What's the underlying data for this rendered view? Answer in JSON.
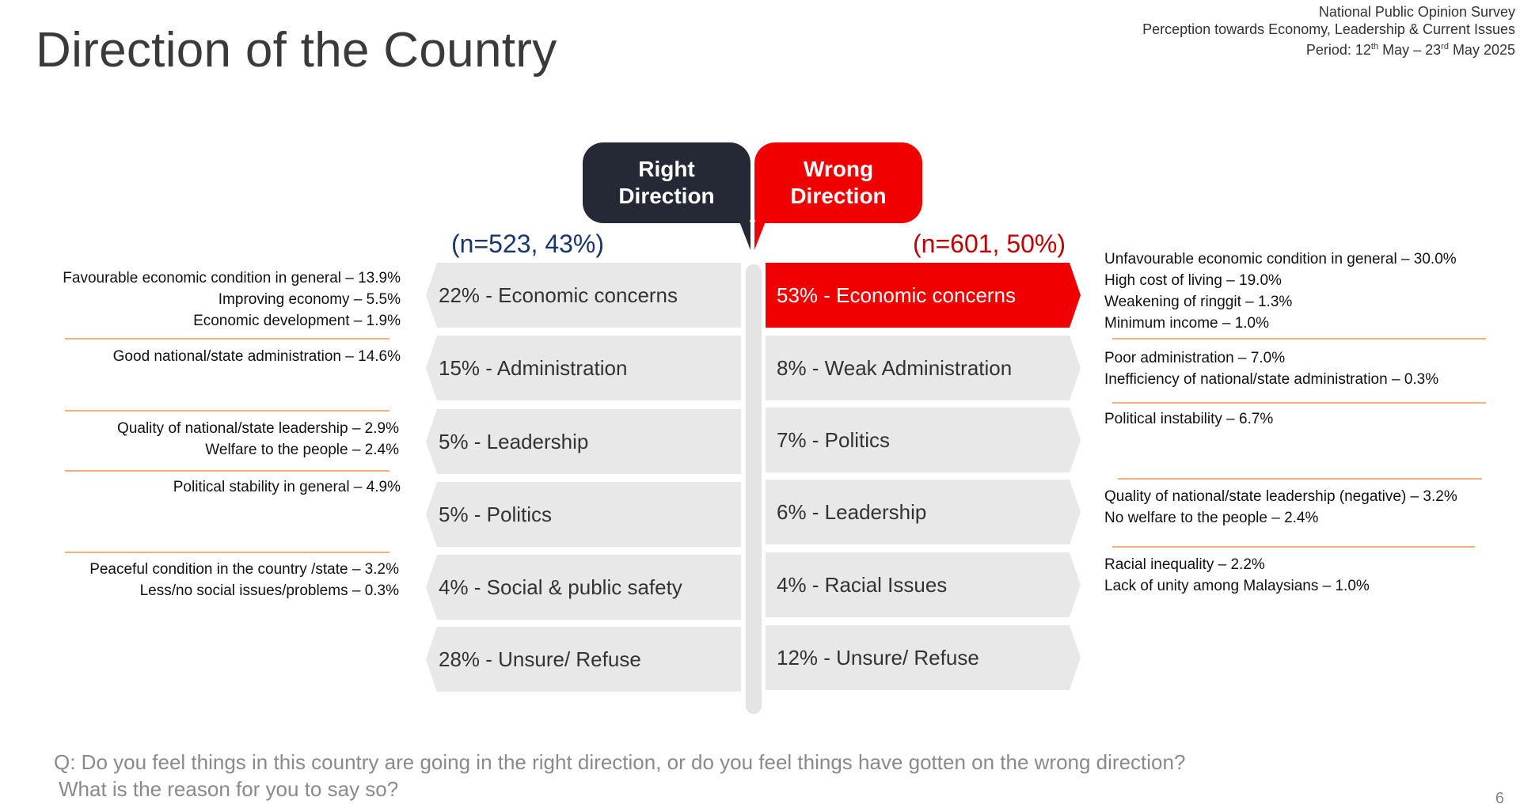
{
  "page": {
    "title": "Direction of the Country",
    "survey": {
      "name": "National Public Opinion Survey",
      "subtitle": "Perception towards Economy, Leadership & Current Issues",
      "period_prefix": "Period: 12",
      "period_sup1": "th",
      "period_mid": " May – 23",
      "period_sup2": "rd",
      "period_suffix": " May 2025"
    },
    "page_number": "6"
  },
  "right_direction": {
    "heading_line1": "Right",
    "heading_line2": "Direction",
    "n_label": "(n=523, 43%)",
    "categories": [
      "22% - Economic concerns",
      "15% - Administration",
      "5% - Leadership",
      "5% - Politics",
      "4% - Social & public safety",
      "28% - Unsure/ Refuse"
    ],
    "reasons": [
      "Favourable economic condition in general – 13.9%",
      "Improving economy – 5.5%",
      "Economic development – 1.9%",
      "Good national/state administration – 14.6%",
      "Quality of national/state leadership – 2.9%",
      "Welfare to the people – 2.4%",
      "Political stability in general – 4.9%",
      "Peaceful condition in the country /state – 3.2%",
      "Less/no social issues/problems – 0.3%"
    ]
  },
  "wrong_direction": {
    "heading_line1": "Wrong",
    "heading_line2": "Direction",
    "n_label": "(n=601, 50%)",
    "categories": [
      "53% - Economic concerns",
      "8% - Weak Administration",
      "7% - Politics",
      "6% - Leadership",
      "4% - Racial Issues",
      "12% - Unsure/ Refuse"
    ],
    "reasons": [
      "Unfavourable economic condition in general – 30.0%",
      "High cost of living – 19.0%",
      "Weakening of ringgit – 1.3%",
      "Minimum income – 1.0%",
      "Poor administration – 7.0%",
      "Inefficiency of national/state administration – 0.3%",
      "Political instability – 6.7%",
      "Quality of national/state leadership (negative) – 3.2%",
      "No welfare to the people – 2.4%",
      "Racial inequality – 2.2%",
      "Lack of unity among Malaysians – 1.0%"
    ]
  },
  "question": {
    "line1": "Q: Do you feel things in this country are going in the right direction, or do you feel things have gotten on the wrong direction?",
    "line2": "What is the reason for you to say so?"
  },
  "colors": {
    "right_tab": "#252835",
    "wrong_tab": "#f10000",
    "divider": "#f0b27a"
  }
}
